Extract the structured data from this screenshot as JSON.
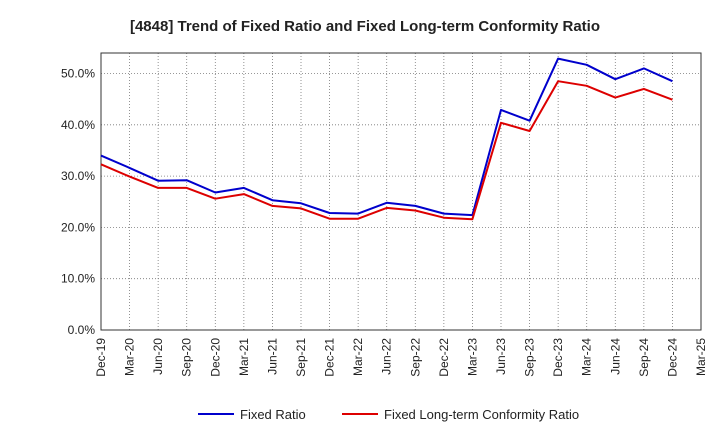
{
  "chart_data": {
    "type": "line",
    "title": "[4848]  Trend of Fixed Ratio and Fixed Long-term Conformity Ratio",
    "xlabel": "",
    "ylabel": "",
    "ylim": [
      0,
      54
    ],
    "yticks": [
      "0.0%",
      "10.0%",
      "20.0%",
      "30.0%",
      "40.0%",
      "50.0%"
    ],
    "ytick_values": [
      0,
      10,
      20,
      30,
      40,
      50
    ],
    "categories": [
      "Dec-19",
      "Mar-20",
      "Jun-20",
      "Sep-20",
      "Dec-20",
      "Mar-21",
      "Jun-21",
      "Sep-21",
      "Dec-21",
      "Mar-22",
      "Jun-22",
      "Sep-22",
      "Dec-22",
      "Mar-23",
      "Jun-23",
      "Sep-23",
      "Dec-23",
      "Mar-24",
      "Jun-24",
      "Sep-24",
      "Dec-24",
      "Mar-25"
    ],
    "series": [
      {
        "name": "Fixed Ratio",
        "color": "#0000cc",
        "values": [
          34.0,
          31.6,
          29.1,
          29.2,
          26.8,
          27.7,
          25.3,
          24.7,
          22.8,
          22.7,
          24.8,
          24.2,
          22.7,
          22.4,
          42.9,
          40.8,
          52.9,
          51.7,
          48.9,
          51.0,
          48.5,
          null
        ]
      },
      {
        "name": "Fixed Long-term Conformity Ratio",
        "color": "#dd0000",
        "values": [
          32.3,
          29.9,
          27.7,
          27.7,
          25.6,
          26.5,
          24.2,
          23.7,
          21.7,
          21.7,
          23.8,
          23.3,
          21.9,
          21.6,
          40.4,
          38.8,
          48.5,
          47.6,
          45.3,
          47.0,
          44.9,
          null
        ]
      }
    ],
    "grid": true,
    "legend_position": "bottom"
  }
}
